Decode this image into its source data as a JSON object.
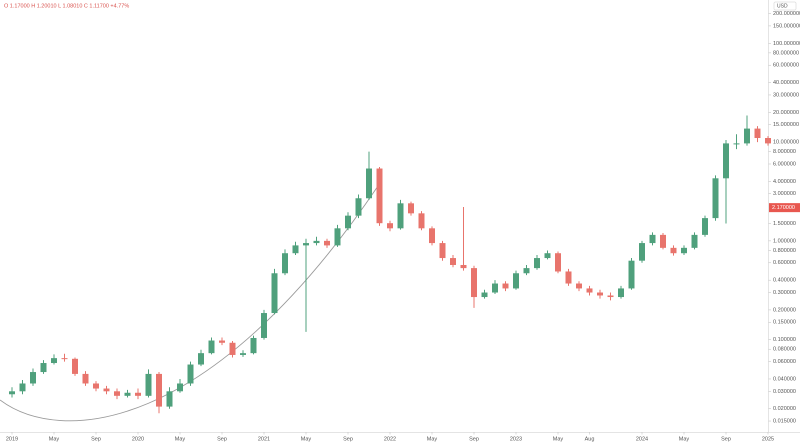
{
  "chart_data": {
    "type": "candlestick",
    "title": "O 1.17000  H 1.20010  L 1.08010  C 1.11700  +4.77%",
    "currency": "USD",
    "log_scale": true,
    "grid": false,
    "up_color": "#4fa07c",
    "down_color": "#e8746c",
    "x": [
      "2019-01",
      "2019-02",
      "2019-03",
      "2019-04",
      "2019-05",
      "2019-06",
      "2019-07",
      "2019-08",
      "2019-09",
      "2019-10",
      "2019-11",
      "2019-12",
      "2020-01",
      "2020-02",
      "2020-03",
      "2020-04",
      "2020-05",
      "2020-06",
      "2020-07",
      "2020-08",
      "2020-09",
      "2020-10",
      "2020-11",
      "2020-12",
      "2021-01",
      "2021-02",
      "2021-03",
      "2021-04",
      "2021-05",
      "2021-06",
      "2021-07",
      "2021-08",
      "2021-09",
      "2021-10",
      "2021-11",
      "2021-12",
      "2022-01",
      "2022-02",
      "2022-03",
      "2022-04",
      "2022-05",
      "2022-06",
      "2022-07",
      "2022-08",
      "2022-09",
      "2022-10",
      "2022-11",
      "2022-12",
      "2023-01",
      "2023-02",
      "2023-03",
      "2023-04",
      "2023-05",
      "2023-06",
      "2023-07",
      "2023-08",
      "2023-09",
      "2023-10",
      "2023-11",
      "2023-12",
      "2024-01",
      "2024-02",
      "2024-03",
      "2024-04",
      "2024-05",
      "2024-06",
      "2024-07",
      "2024-08",
      "2024-09",
      "2024-10",
      "2024-11",
      "2024-12",
      "2025-01"
    ],
    "open": [
      0.028,
      0.03,
      0.036,
      0.047,
      0.058,
      0.065,
      0.064,
      0.045,
      0.036,
      0.032,
      0.03,
      0.027,
      0.029,
      0.027,
      0.045,
      0.021,
      0.03,
      0.036,
      0.056,
      0.073,
      0.098,
      0.093,
      0.07,
      0.073,
      0.104,
      0.186,
      0.47,
      0.75,
      0.9,
      0.95,
      1.0,
      0.9,
      1.34,
      1.8,
      2.7,
      5.4,
      1.51,
      1.34,
      2.4,
      1.9,
      1.34,
      0.95,
      0.67,
      0.57,
      0.53,
      0.27,
      0.3,
      0.37,
      0.33,
      0.47,
      0.53,
      0.67,
      0.75,
      0.49,
      0.37,
      0.33,
      0.3,
      0.28,
      0.27,
      0.33,
      0.63,
      0.95,
      1.15,
      0.85,
      0.75,
      0.85,
      1.15,
      1.7,
      4.3,
      9.7,
      9.7,
      13.7,
      11.0
    ],
    "high": [
      0.033,
      0.039,
      0.051,
      0.062,
      0.071,
      0.072,
      0.066,
      0.048,
      0.038,
      0.034,
      0.032,
      0.031,
      0.032,
      0.05,
      0.047,
      0.033,
      0.04,
      0.06,
      0.079,
      0.105,
      0.105,
      0.097,
      0.078,
      0.11,
      0.2,
      0.52,
      0.82,
      0.98,
      1.05,
      1.1,
      1.05,
      1.45,
      1.95,
      2.95,
      8.0,
      5.6,
      1.6,
      2.6,
      2.5,
      2.0,
      1.4,
      1.0,
      0.72,
      2.2,
      0.56,
      0.32,
      0.4,
      0.39,
      0.5,
      0.57,
      0.72,
      0.8,
      0.78,
      0.52,
      0.39,
      0.35,
      0.32,
      0.3,
      0.35,
      0.67,
      1.0,
      1.22,
      1.2,
      0.9,
      0.9,
      1.22,
      1.8,
      4.6,
      10.5,
      12.0,
      18.6,
      14.5,
      11.5
    ],
    "low": [
      0.026,
      0.028,
      0.034,
      0.045,
      0.056,
      0.06,
      0.043,
      0.034,
      0.03,
      0.028,
      0.025,
      0.026,
      0.025,
      0.026,
      0.018,
      0.02,
      0.029,
      0.034,
      0.054,
      0.071,
      0.088,
      0.066,
      0.067,
      0.071,
      0.1,
      0.18,
      0.45,
      0.72,
      0.12,
      0.9,
      0.85,
      0.87,
      1.28,
      1.7,
      2.6,
      1.42,
      1.25,
      1.3,
      1.8,
      1.28,
      0.9,
      0.63,
      0.54,
      0.5,
      0.21,
      0.26,
      0.29,
      0.31,
      0.32,
      0.45,
      0.51,
      0.65,
      0.47,
      0.35,
      0.31,
      0.28,
      0.26,
      0.25,
      0.26,
      0.32,
      0.6,
      0.9,
      0.82,
      0.71,
      0.72,
      0.82,
      1.1,
      1.6,
      1.5,
      8.5,
      9.2,
      10.0,
      9.2
    ],
    "close": [
      0.03,
      0.036,
      0.047,
      0.058,
      0.065,
      0.064,
      0.045,
      0.036,
      0.032,
      0.03,
      0.027,
      0.029,
      0.027,
      0.045,
      0.021,
      0.03,
      0.036,
      0.056,
      0.073,
      0.098,
      0.093,
      0.07,
      0.073,
      0.104,
      0.186,
      0.47,
      0.75,
      0.9,
      0.95,
      1.0,
      0.9,
      1.34,
      1.8,
      2.7,
      5.4,
      1.51,
      1.34,
      2.4,
      1.9,
      1.34,
      0.95,
      0.67,
      0.57,
      0.53,
      0.27,
      0.3,
      0.37,
      0.33,
      0.47,
      0.53,
      0.67,
      0.75,
      0.49,
      0.37,
      0.33,
      0.3,
      0.28,
      0.27,
      0.33,
      0.63,
      0.95,
      1.15,
      0.85,
      0.75,
      0.85,
      1.15,
      1.7,
      4.3,
      9.7,
      9.7,
      13.7,
      11.0,
      9.7
    ],
    "ylim": [
      0.014,
      250
    ],
    "yticks": [
      {
        "value": 200,
        "label": "200.000000"
      },
      {
        "value": 150,
        "label": "150.000000"
      },
      {
        "value": 100,
        "label": "100.000000"
      },
      {
        "value": 80,
        "label": "80.000000"
      },
      {
        "value": 60,
        "label": "60.000000"
      },
      {
        "value": 40,
        "label": "40.000000"
      },
      {
        "value": 30,
        "label": "30.000000"
      },
      {
        "value": 20,
        "label": "20.000000"
      },
      {
        "value": 15,
        "label": "15.000000"
      },
      {
        "value": 10,
        "label": "10.000000"
      },
      {
        "value": 8,
        "label": "8.000000"
      },
      {
        "value": 6,
        "label": "6.000000"
      },
      {
        "value": 4,
        "label": "4.000000"
      },
      {
        "value": 3,
        "label": "3.000000"
      },
      {
        "value": 1.5,
        "label": "1.500000"
      },
      {
        "value": 1,
        "label": "1.000000"
      },
      {
        "value": 0.8,
        "label": "0.800000"
      },
      {
        "value": 0.6,
        "label": "0.600000"
      },
      {
        "value": 0.4,
        "label": "0.400000"
      },
      {
        "value": 0.3,
        "label": "0.300000"
      },
      {
        "value": 0.2,
        "label": "0.200000"
      },
      {
        "value": 0.15,
        "label": "0.150000"
      },
      {
        "value": 0.1,
        "label": "0.100000"
      },
      {
        "value": 0.08,
        "label": "0.080000"
      },
      {
        "value": 0.06,
        "label": "0.060000"
      },
      {
        "value": 0.04,
        "label": "0.040000"
      },
      {
        "value": 0.03,
        "label": "0.030000"
      },
      {
        "value": 0.02,
        "label": "0.020000"
      },
      {
        "value": 0.015,
        "label": "0.015000"
      }
    ],
    "xticks": [
      {
        "value": "2019-01",
        "label": "2019"
      },
      {
        "value": "2019-05",
        "label": "May"
      },
      {
        "value": "2019-09",
        "label": "Sep"
      },
      {
        "value": "2020-01",
        "label": "2020"
      },
      {
        "value": "2020-05",
        "label": "May"
      },
      {
        "value": "2020-09",
        "label": "Sep"
      },
      {
        "value": "2021-01",
        "label": "2021"
      },
      {
        "value": "2021-05",
        "label": "May"
      },
      {
        "value": "2021-09",
        "label": "Sep"
      },
      {
        "value": "2022-01",
        "label": "2022"
      },
      {
        "value": "2022-05",
        "label": "May"
      },
      {
        "value": "2022-09",
        "label": "Sep"
      },
      {
        "value": "2023-01",
        "label": "2023"
      },
      {
        "value": "2023-05",
        "label": "May"
      },
      {
        "value": "2023-08",
        "label": "Aug"
      },
      {
        "value": "2024-01",
        "label": "2024"
      },
      {
        "value": "2024-05",
        "label": "May"
      },
      {
        "value": "2024-09",
        "label": "Sep"
      },
      {
        "value": "2025-01",
        "label": "2025"
      }
    ],
    "price_label": {
      "value": 2.17,
      "label": "2.170000"
    }
  }
}
